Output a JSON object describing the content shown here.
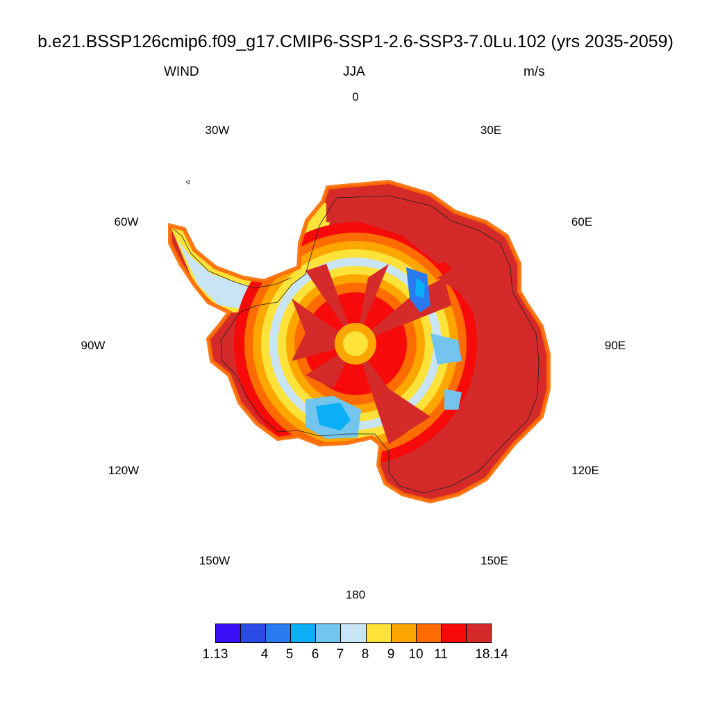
{
  "title": "b.e21.BSSP126cmip6.f09_g17.CMIP6-SSP1-2.6-SSP3-7.0Lu.102 (yrs 2035-2059)",
  "subtitle": {
    "left": "WIND",
    "center": "JJA",
    "right": "m/s"
  },
  "longitude_labels": [
    "0",
    "30E",
    "60E",
    "90E",
    "120E",
    "150E",
    "180",
    "150W",
    "120W",
    "90W",
    "60W",
    "30W"
  ],
  "colorbar": {
    "colors": [
      "#3b0ff5",
      "#2b4ce6",
      "#2a7bf0",
      "#0aaff5",
      "#73c5ed",
      "#c9e5f5",
      "#fde23a",
      "#fda600",
      "#fd6c00",
      "#f70a0a",
      "#d42a2a"
    ],
    "labels": [
      "1.13",
      "4",
      "5",
      "6",
      "7",
      "8",
      "9",
      "10",
      "11",
      "18.14"
    ]
  }
}
